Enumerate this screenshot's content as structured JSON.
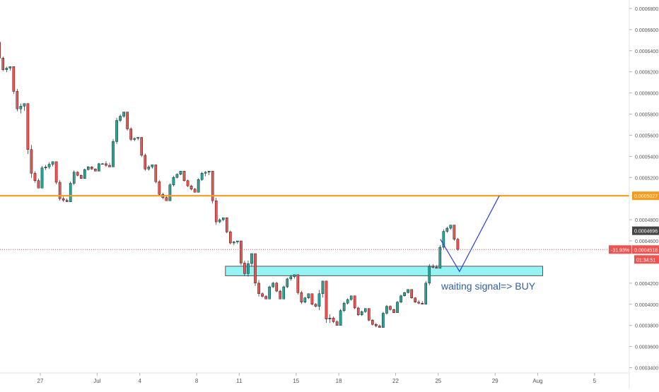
{
  "chart_data": {
    "type": "candlestick",
    "colors": {
      "up": "#26a69a",
      "down": "#ef5350",
      "candle_outline": "#000000",
      "resistance_line": "#f59b1e",
      "last_price_line": "#ef5350",
      "support_zone_fill": "#6ff0ef",
      "support_zone_stroke": "#555555",
      "projection_path": "#2f3de6",
      "annotation_text": "#2e5fa5",
      "axis_text": "#555555",
      "axis_line": "#e0e3eb"
    },
    "y_axis": {
      "position": "right",
      "ylim": [
        0.000335,
        0.000688
      ],
      "ticks": [
        "0.0006800",
        "0.0006600",
        "0.0006400",
        "0.0006200",
        "0.0006000",
        "0.0005800",
        "0.0005600",
        "0.0005400",
        "0.0005200",
        "0.0004800",
        "0.0004600",
        "0.0004200",
        "0.0004000",
        "0.0003800",
        "0.0003600",
        "0.0003400"
      ],
      "tick_values": [
        0.00068,
        0.00066,
        0.00064,
        0.00062,
        0.0006,
        0.00058,
        0.00056,
        0.00054,
        0.00052,
        0.00048,
        0.00046,
        0.00042,
        0.0004,
        0.00038,
        0.00036,
        0.00034
      ]
    },
    "x_axis": {
      "ticks": [
        "27",
        "Jul",
        "4",
        "8",
        "11",
        "15",
        "18",
        "22",
        "25",
        "29",
        "Aug",
        "5"
      ],
      "tick_dates": [
        "2019-06-27",
        "2019-07-01",
        "2019-07-04",
        "2019-07-08",
        "2019-07-11",
        "2019-07-15",
        "2019-07-18",
        "2019-07-22",
        "2019-07-25",
        "2019-07-29",
        "2019-08-01",
        "2019-08-05"
      ]
    },
    "price_labels": {
      "resistance": "0.0005027",
      "current_high": "0.0004696",
      "last_price": "0.0004518",
      "change_pct": "-31.93%",
      "countdown": "01:34:51"
    },
    "resistance_level": 0.0005027,
    "last_price": 0.0004518,
    "support_zone": {
      "low": 0.000427,
      "high": 0.000436
    },
    "annotation": "waiting signal=> BUY",
    "projection_path": [
      {
        "t": "2019-07-25",
        "p": 0.0004616
      },
      {
        "t": "2019-07-26",
        "p": 0.000431
      },
      {
        "t": "2019-07-28",
        "p": 0.0005027
      }
    ],
    "candles": [
      {
        "t": "2019-06-22",
        "o": 0.000676,
        "h": 0.000678,
        "l": 0.00066,
        "c": 0.000664
      },
      {
        "t": "2019-06-23",
        "o": 0.000664,
        "h": 0.00067,
        "l": 0.00064,
        "c": 0.000645
      },
      {
        "t": "2019-06-24",
        "o": 0.000645,
        "h": 0.000648,
        "l": 0.000618,
        "c": 0.000622
      },
      {
        "t": "2019-06-25",
        "o": 0.000622,
        "h": 0.000625,
        "l": 0.000578,
        "c": 0.000585
      },
      {
        "t": "2019-06-26",
        "o": 0.000585,
        "h": 0.00059,
        "l": 0.000503,
        "c": 0.000524
      },
      {
        "t": "2019-06-27",
        "o": 0.000524,
        "h": 0.000548,
        "l": 0.00051,
        "c": 0.00053
      },
      {
        "t": "2019-06-28",
        "o": 0.00053,
        "h": 0.000535,
        "l": 0.000496,
        "c": 0.0005
      },
      {
        "t": "2019-06-29",
        "o": 0.0005,
        "h": 0.000532,
        "l": 0.000497,
        "c": 0.000525
      },
      {
        "t": "2019-06-30",
        "o": 0.000525,
        "h": 0.000536,
        "l": 0.000519,
        "c": 0.00053
      },
      {
        "t": "2019-07-01",
        "o": 0.00053,
        "h": 0.00054,
        "l": 0.000526,
        "c": 0.000533
      },
      {
        "t": "2019-07-02",
        "o": 0.000533,
        "h": 0.000578,
        "l": 0.00053,
        "c": 0.000574
      },
      {
        "t": "2019-07-03",
        "o": 0.000574,
        "h": 0.000582,
        "l": 0.00055,
        "c": 0.000556
      },
      {
        "t": "2019-07-04",
        "o": 0.000556,
        "h": 0.000558,
        "l": 0.000524,
        "c": 0.000528
      },
      {
        "t": "2019-07-05",
        "o": 0.000528,
        "h": 0.000532,
        "l": 0.0005,
        "c": 0.000504
      },
      {
        "t": "2019-07-06",
        "o": 0.000504,
        "h": 0.000528,
        "l": 0.000498,
        "c": 0.00052
      },
      {
        "t": "2019-07-07",
        "o": 0.00052,
        "h": 0.000526,
        "l": 0.000508,
        "c": 0.000512
      },
      {
        "t": "2019-07-08",
        "o": 0.000512,
        "h": 0.00053,
        "l": 0.000506,
        "c": 0.000524
      },
      {
        "t": "2019-07-09",
        "o": 0.000524,
        "h": 0.000526,
        "l": 0.00047,
        "c": 0.000478
      },
      {
        "t": "2019-07-10",
        "o": 0.000478,
        "h": 0.000482,
        "l": 0.000455,
        "c": 0.000458
      },
      {
        "t": "2019-07-11",
        "o": 0.000458,
        "h": 0.00046,
        "l": 0.000418,
        "c": 0.000429
      },
      {
        "t": "2019-07-12",
        "o": 0.000429,
        "h": 0.000448,
        "l": 0.000392,
        "c": 0.00041
      },
      {
        "t": "2019-07-13",
        "o": 0.00041,
        "h": 0.000428,
        "l": 0.000405,
        "c": 0.00042
      },
      {
        "t": "2019-07-14",
        "o": 0.00042,
        "h": 0.000428,
        "l": 0.000405,
        "c": 0.000424
      },
      {
        "t": "2019-07-15",
        "o": 0.000424,
        "h": 0.000428,
        "l": 0.000394,
        "c": 0.000402
      },
      {
        "t": "2019-07-16",
        "o": 0.000402,
        "h": 0.00041,
        "l": 0.00039,
        "c": 0.000398
      },
      {
        "t": "2019-07-17",
        "o": 0.000398,
        "h": 0.000422,
        "l": 0.00035,
        "c": 0.000387
      },
      {
        "t": "2019-07-18",
        "o": 0.000387,
        "h": 0.000408,
        "l": 0.00038,
        "c": 0.000401
      },
      {
        "t": "2019-07-19",
        "o": 0.000401,
        "h": 0.000408,
        "l": 0.000385,
        "c": 0.00039
      },
      {
        "t": "2019-07-20",
        "o": 0.00039,
        "h": 0.000396,
        "l": 0.000374,
        "c": 0.000381
      },
      {
        "t": "2019-07-21",
        "o": 0.000381,
        "h": 0.000405,
        "l": 0.000378,
        "c": 0.000398
      },
      {
        "t": "2019-07-22",
        "o": 0.000398,
        "h": 0.000412,
        "l": 0.000392,
        "c": 0.000408
      },
      {
        "t": "2019-07-23",
        "o": 0.000408,
        "h": 0.000414,
        "l": 0.000398,
        "c": 0.000402
      },
      {
        "t": "2019-07-24",
        "o": 0.000402,
        "h": 0.00044,
        "l": 0.0004,
        "c": 0.000436
      },
      {
        "t": "2019-07-25",
        "o": 0.000436,
        "h": 0.000474,
        "l": 0.000434,
        "c": 0.000469
      },
      {
        "t": "2019-07-26",
        "o": 0.000469,
        "h": 0.000475,
        "l": 0.000448,
        "c": 0.000452
      }
    ]
  }
}
